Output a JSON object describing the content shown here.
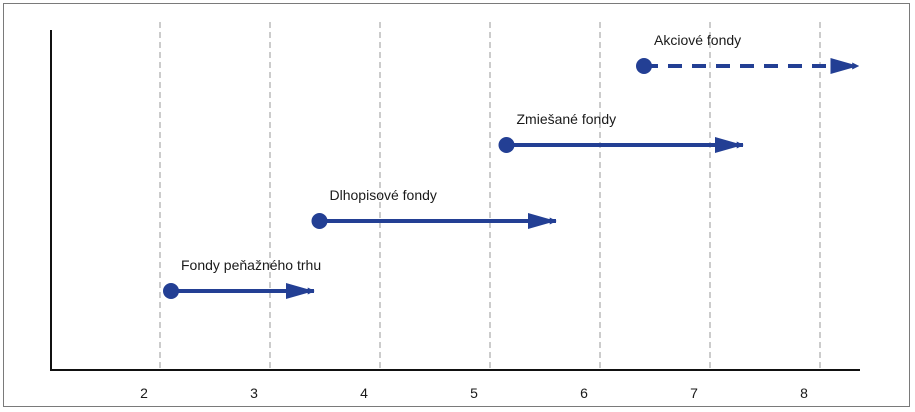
{
  "chart_data": {
    "type": "range-arrows",
    "xlabel": "",
    "ylabel": "",
    "xlim": [
      1.0,
      8.35
    ],
    "x_ticks": [
      2,
      3,
      4,
      5,
      6,
      7,
      8
    ],
    "x_tick_labels": [
      "2",
      "3",
      "4",
      "5",
      "6",
      "7",
      "8"
    ],
    "grid": "vertical dashed lines at x ticks",
    "legend": "none",
    "accent_color": "#233f94",
    "series": [
      {
        "name": "Fondy peňažného trhu",
        "start": 2.1,
        "end": 3.4,
        "style": "solid"
      },
      {
        "name": "Dlhopisové fondy",
        "start": 3.45,
        "end": 5.6,
        "style": "solid"
      },
      {
        "name": "Zmiešané fondy",
        "start": 5.15,
        "end": 7.3,
        "style": "solid"
      },
      {
        "name": "Akciové fondy",
        "start": 6.4,
        "end": 8.35,
        "style": "dashed"
      }
    ]
  }
}
